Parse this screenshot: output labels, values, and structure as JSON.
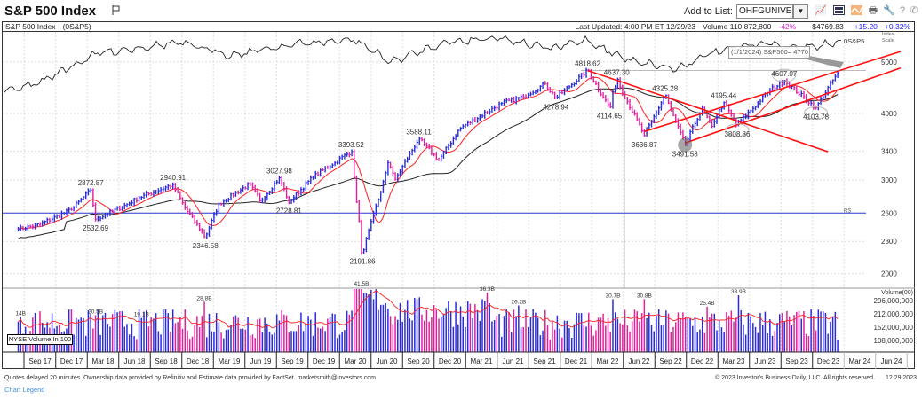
{
  "header": {
    "title": "S&P 500 Index",
    "add_to_list_label": "Add to List:",
    "list_value": "OHFGUNIVERSE",
    "toolbar_icons": [
      "chart-icon",
      "layout-icon",
      "overlay-icon",
      "print-icon",
      "wrench-icon",
      "help-icon",
      "phone-icon"
    ]
  },
  "info_bar": {
    "name": "S&P 500 Index",
    "symbol": "(0S&P5)",
    "last_updated": "Last Updated: 4:00 PM ET 12/29/23",
    "volume": "Volume 110,872,800",
    "volume_change": "-42%",
    "price": "$4769.83",
    "change": "+15.20",
    "change_pct": "+0.32%"
  },
  "colors": {
    "up": "#2a2adf",
    "down": "#e0209a",
    "ma_short": "#ff2020",
    "ma_long": "#222222",
    "trendline": "#ff1010",
    "rs_level": "#2b3bd8",
    "change_positive": "#1a1aff",
    "volume_change": "#e020e0"
  },
  "chart_data": {
    "type": "bar",
    "price_axis": {
      "scale": "log",
      "ticks": [
        5000,
        4000,
        3400,
        3000,
        2600,
        2300,
        2000
      ],
      "label": "Index Scale"
    },
    "volume_axis": {
      "scale": "log",
      "label": "Volume(00)",
      "ticks": [
        "296,000,000",
        "212,000,000",
        "152,000,000",
        "108,000,000"
      ],
      "tick_values": [
        296000000,
        212000000,
        152000000,
        108000000
      ]
    },
    "x_ticks": [
      "Sep 17",
      "Dec 17",
      "Mar 18",
      "Jun 18",
      "Sep 18",
      "Dec 18",
      "Mar 19",
      "Jun 19",
      "Sep 19",
      "Dec 19",
      "Mar 20",
      "Jun 20",
      "Sep 20",
      "Dec 20",
      "Mar 21",
      "Jun 21",
      "Sep 21",
      "Dec 21",
      "Mar 22",
      "Jun 22",
      "Sep 22",
      "Dec 22",
      "Mar 23",
      "Jun 23",
      "Sep 23",
      "Dec 23",
      "Mar 24",
      "Jun 24"
    ],
    "price_path": [
      [
        "2017-06-30",
        2423
      ],
      [
        "2017-09-01",
        2476
      ],
      [
        "2017-12-01",
        2640
      ],
      [
        "2018-01-26",
        2872.87
      ],
      [
        "2018-02-09",
        2532.69
      ],
      [
        "2018-04-27",
        2669
      ],
      [
        "2018-06-15",
        2780
      ],
      [
        "2018-09-21",
        2940.91
      ],
      [
        "2018-10-26",
        2658
      ],
      [
        "2018-12-24",
        2346.58
      ],
      [
        "2019-02-01",
        2706
      ],
      [
        "2019-04-30",
        2945
      ],
      [
        "2019-06-03",
        2744
      ],
      [
        "2019-07-26",
        3027.98
      ],
      [
        "2019-08-23",
        2728.81
      ],
      [
        "2019-10-31",
        3037
      ],
      [
        "2019-12-31",
        3230
      ],
      [
        "2020-02-19",
        3393.52
      ],
      [
        "2020-03-23",
        2191.86
      ],
      [
        "2020-06-08",
        3232
      ],
      [
        "2020-06-26",
        3009
      ],
      [
        "2020-09-02",
        3588.11
      ],
      [
        "2020-10-30",
        3270
      ],
      [
        "2020-12-31",
        3756
      ],
      [
        "2021-04-30",
        4181
      ],
      [
        "2021-06-30",
        4297
      ],
      [
        "2021-09-02",
        4545
      ],
      [
        "2021-10-04",
        4278.94
      ],
      [
        "2022-01-04",
        4818.62
      ],
      [
        "2022-03-08",
        4114.65
      ],
      [
        "2022-03-29",
        4637.3
      ],
      [
        "2022-06-17",
        3636.87
      ],
      [
        "2022-08-16",
        4325.28
      ],
      [
        "2022-10-13",
        3491.58
      ],
      [
        "2022-12-01",
        4100
      ],
      [
        "2022-12-28",
        3783
      ],
      [
        "2023-02-02",
        4195.44
      ],
      [
        "2023-03-13",
        3808.86
      ],
      [
        "2023-06-15",
        4425
      ],
      [
        "2023-07-27",
        4607.07
      ],
      [
        "2023-10-27",
        4103.78
      ],
      [
        "2023-12-29",
        4769.83
      ]
    ],
    "price_labels": [
      {
        "text": "2872.87",
        "date": "2018-01-26",
        "value": 2872.87,
        "side": "above"
      },
      {
        "text": "2532.69",
        "date": "2018-02-09",
        "value": 2532.69,
        "side": "below"
      },
      {
        "text": "2940.91",
        "date": "2018-09-21",
        "value": 2940.91,
        "side": "above"
      },
      {
        "text": "2346.58",
        "date": "2018-12-24",
        "value": 2346.58,
        "side": "below"
      },
      {
        "text": "3027.98",
        "date": "2019-07-26",
        "value": 3027.98,
        "side": "above"
      },
      {
        "text": "2728.81",
        "date": "2019-08-23",
        "value": 2728.81,
        "side": "below"
      },
      {
        "text": "3393.52",
        "date": "2020-02-19",
        "value": 3393.52,
        "side": "above"
      },
      {
        "text": "2191.86",
        "date": "2020-03-23",
        "value": 2191.86,
        "side": "below"
      },
      {
        "text": "3588.11",
        "date": "2020-09-02",
        "value": 3588.11,
        "side": "above"
      },
      {
        "text": "4278.94",
        "date": "2021-10-04",
        "value": 4278.94,
        "side": "below"
      },
      {
        "text": "4818.62",
        "date": "2022-01-04",
        "value": 4818.62,
        "side": "above"
      },
      {
        "text": "4114.65",
        "date": "2022-03-08",
        "value": 4114.65,
        "side": "below"
      },
      {
        "text": "4637.30",
        "date": "2022-03-29",
        "value": 4637.3,
        "side": "above"
      },
      {
        "text": "3636.87",
        "date": "2022-06-17",
        "value": 3636.87,
        "side": "below"
      },
      {
        "text": "4325.28",
        "date": "2022-08-16",
        "value": 4325.28,
        "side": "above"
      },
      {
        "text": "3491.58",
        "date": "2022-10-13",
        "value": 3491.58,
        "side": "below"
      },
      {
        "text": "4195.44",
        "date": "2023-02-02",
        "value": 4195.44,
        "side": "above"
      },
      {
        "text": "3808.86",
        "date": "2023-03-13",
        "value": 3808.86,
        "side": "below"
      },
      {
        "text": "4607.07",
        "date": "2023-07-27",
        "value": 4607.07,
        "side": "above"
      },
      {
        "text": "4103.78",
        "date": "2023-10-27",
        "value": 4103.78,
        "side": "below"
      }
    ],
    "volume_labels": [
      {
        "text": "14B",
        "date": "2017-07-07"
      },
      {
        "text": "20.5B",
        "date": "2018-02-09"
      },
      {
        "text": "19.1B",
        "date": "2018-06-22"
      },
      {
        "text": "28.8B",
        "date": "2018-12-21"
      },
      {
        "text": "41.5B",
        "date": "2020-03-20"
      },
      {
        "text": "36.3B",
        "date": "2021-03-19"
      },
      {
        "text": "26.2B",
        "date": "2021-06-18"
      },
      {
        "text": "30.7B",
        "date": "2022-03-18"
      },
      {
        "text": "30.8B",
        "date": "2022-06-17"
      },
      {
        "text": "25.4B",
        "date": "2022-12-16"
      },
      {
        "text": "33.9B",
        "date": "2023-03-17"
      }
    ],
    "trendlines": [
      {
        "from": [
          "2022-01-04",
          4818.62
        ],
        "to": [
          "2023-12-01",
          3390
        ]
      },
      {
        "from": [
          "2022-06-17",
          3700
        ],
        "to": [
          "2024-06-28",
          5230
        ]
      },
      {
        "from": [
          "2022-10-13",
          3520
        ],
        "to": [
          "2024-06-28",
          4870
        ]
      }
    ],
    "reference_line": {
      "value": 4818.62,
      "from": "2021-12-15"
    },
    "rs_level": {
      "value": 2600,
      "label": "RS"
    },
    "rs_line_label": "0S&P5",
    "annotation": "(1/1/2024)  S&P500= 4770",
    "volume_box_label": "NYSE Volume In 100"
  },
  "footer": {
    "disclaimer": "Quotes delayed 20 minutes. Ownership data provided by Refinitiv and Estimate data provided by FactSet. marketsmith@investors.com",
    "legend_link": "Chart Legend",
    "copyright": "© 2023 Investor's Business Daily, LLC. All rights reserved.",
    "date": "12.29.2023"
  }
}
